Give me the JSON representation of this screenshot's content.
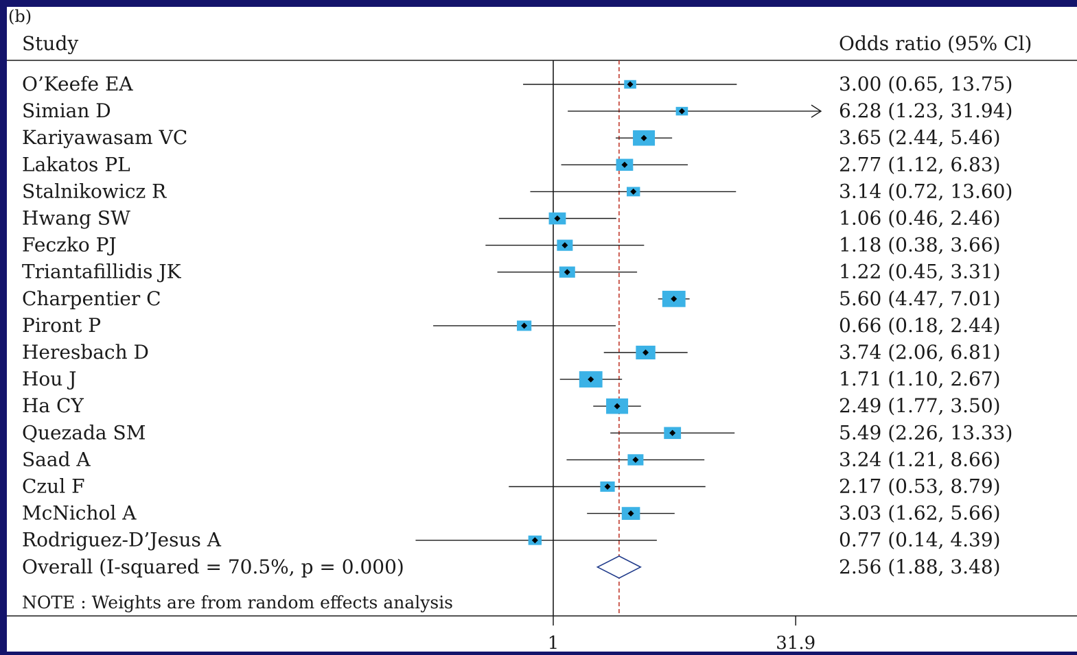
{
  "chart_data": {
    "type": "forest",
    "panel_label": "(b)",
    "columns": {
      "study": "Study",
      "effect": "Odds ratio (95% Cl)"
    },
    "scale": "log",
    "null_line": 1,
    "reference_line": 2.56,
    "x_ticks": [
      {
        "value": 1,
        "label": "1"
      },
      {
        "value": 31.9,
        "label": "31.9"
      }
    ],
    "colors": {
      "box": "#3bb2e6",
      "point": "#000000",
      "line": "#1a1a1a",
      "reference_line": "#c0392b",
      "diamond": "#1f3a8a"
    },
    "studies": [
      {
        "name": "O’Keefe EA",
        "or": 3.0,
        "lo": 0.65,
        "hi": 13.75,
        "ci_text": "3.00 (0.65, 13.75)",
        "weight": 1,
        "arrow": false
      },
      {
        "name": "Simian D",
        "or": 6.28,
        "lo": 1.23,
        "hi": 31.94,
        "ci_text": "6.28 (1.23, 31.94)",
        "weight": 1,
        "arrow": true
      },
      {
        "name": "Kariyawasam VC",
        "or": 3.65,
        "lo": 2.44,
        "hi": 5.46,
        "ci_text": "3.65 (2.44, 5.46)",
        "weight": 5,
        "arrow": false
      },
      {
        "name": "Lakatos PL",
        "or": 2.77,
        "lo": 1.12,
        "hi": 6.83,
        "ci_text": "2.77 (1.12, 6.83)",
        "weight": 3,
        "arrow": false
      },
      {
        "name": "Stalnikowicz R",
        "or": 3.14,
        "lo": 0.72,
        "hi": 13.6,
        "ci_text": "3.14 (0.72, 13.60)",
        "weight": 1.5,
        "arrow": false
      },
      {
        "name": "Hwang SW",
        "or": 1.06,
        "lo": 0.46,
        "hi": 2.46,
        "ci_text": "1.06 (0.46, 2.46)",
        "weight": 3,
        "arrow": false
      },
      {
        "name": "Feczko PJ",
        "or": 1.18,
        "lo": 0.38,
        "hi": 3.66,
        "ci_text": "1.18 (0.38, 3.66)",
        "weight": 2.5,
        "arrow": false
      },
      {
        "name": "Triantafillidis JK",
        "or": 1.22,
        "lo": 0.45,
        "hi": 3.31,
        "ci_text": "1.22 (0.45, 3.31)",
        "weight": 2.5,
        "arrow": false
      },
      {
        "name": "Charpentier C",
        "or": 5.6,
        "lo": 4.47,
        "hi": 7.01,
        "ci_text": "5.60 (4.47, 7.01)",
        "weight": 5.5,
        "arrow": false
      },
      {
        "name": "Piront P",
        "or": 0.66,
        "lo": 0.18,
        "hi": 2.44,
        "ci_text": "0.66 (0.18, 2.44)",
        "weight": 2,
        "arrow": false
      },
      {
        "name": "Heresbach D",
        "or": 3.74,
        "lo": 2.06,
        "hi": 6.81,
        "ci_text": "3.74 (2.06, 6.81)",
        "weight": 4,
        "arrow": false
      },
      {
        "name": "Hou J",
        "or": 1.71,
        "lo": 1.1,
        "hi": 2.67,
        "ci_text": "1.71 (1.10, 2.67)",
        "weight": 5.5,
        "arrow": false
      },
      {
        "name": "Ha CY",
        "or": 2.49,
        "lo": 1.77,
        "hi": 3.5,
        "ci_text": "2.49 (1.77, 3.50)",
        "weight": 5,
        "arrow": false
      },
      {
        "name": "Quezada SM",
        "or": 5.49,
        "lo": 2.26,
        "hi": 13.33,
        "ci_text": "5.49 (2.26, 13.33)",
        "weight": 3,
        "arrow": false
      },
      {
        "name": "Saad A",
        "or": 3.24,
        "lo": 1.21,
        "hi": 8.66,
        "ci_text": "3.24 (1.21, 8.66)",
        "weight": 2.5,
        "arrow": false
      },
      {
        "name": "Czul F",
        "or": 2.17,
        "lo": 0.53,
        "hi": 8.79,
        "ci_text": "2.17 (0.53, 8.79)",
        "weight": 2,
        "arrow": false
      },
      {
        "name": "McNichol A",
        "or": 3.03,
        "lo": 1.62,
        "hi": 5.66,
        "ci_text": "3.03 (1.62, 5.66)",
        "weight": 3.5,
        "arrow": false
      },
      {
        "name": "Rodriguez-D’Jesus A",
        "or": 0.77,
        "lo": 0.14,
        "hi": 4.39,
        "ci_text": "0.77 (0.14, 4.39)",
        "weight": 1.5,
        "arrow": false
      }
    ],
    "overall": {
      "label": "Overall (I-squared = 70.5%, p = 0.000)",
      "or": 2.56,
      "lo": 1.88,
      "hi": 3.48,
      "ci_text": "2.56 (1.88, 3.48)"
    },
    "note": "NOTE : Weights are from random effects analysis"
  }
}
